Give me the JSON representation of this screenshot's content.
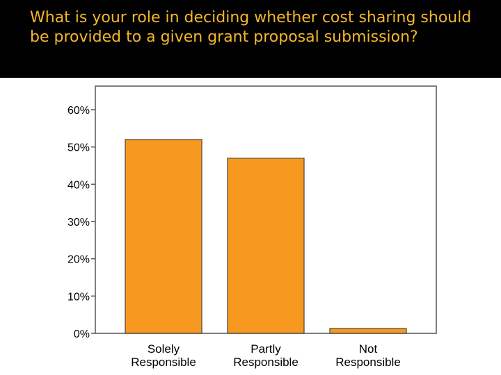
{
  "slide": {
    "title": "What is your role in deciding whether cost sharing should be provided to a given grant proposal submission?"
  },
  "colors": {
    "background": "#000000",
    "title": "#f5b729",
    "bar_fill": "#f7991e",
    "bar_stroke": "#444444",
    "plot_background": "#ffffff"
  },
  "chart_data": {
    "type": "bar",
    "categories": [
      [
        "Solely",
        "Responsible"
      ],
      [
        "Partly",
        "Responsible"
      ],
      [
        "Not",
        "Responsible"
      ]
    ],
    "values": [
      52,
      47,
      1.3
    ],
    "value_unit": "%",
    "ylim": [
      0,
      60
    ],
    "yticks": [
      0,
      10,
      20,
      30,
      40,
      50,
      60
    ],
    "ytick_labels": [
      "0%",
      "10%",
      "20%",
      "30%",
      "40%",
      "50%",
      "60%"
    ],
    "xlabel": "",
    "ylabel": "",
    "grid": false,
    "legend": "none"
  }
}
